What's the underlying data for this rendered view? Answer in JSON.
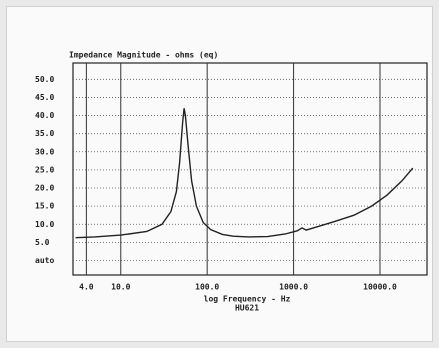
{
  "chart_data": {
    "type": "line",
    "title": "Impedance Magnitude - ohms (eq)",
    "x_label": "log Frequency - Hz",
    "subtitle": "HU621",
    "x_scale": "log",
    "grid": true,
    "xlim": [
      2.8,
      35000
    ],
    "ylim": [
      -4,
      54.5
    ],
    "xticks": [
      {
        "value": 4,
        "label": "4.0"
      },
      {
        "value": 10,
        "label": "10.0"
      },
      {
        "value": 100,
        "label": "100.0"
      },
      {
        "value": 1000,
        "label": "1000.0"
      },
      {
        "value": 10000,
        "label": "10000.0"
      }
    ],
    "yticks": [
      {
        "value": 0,
        "label": "auto"
      },
      {
        "value": 5,
        "label": "5.0"
      },
      {
        "value": 10,
        "label": "10.0"
      },
      {
        "value": 15,
        "label": "15.0"
      },
      {
        "value": 20,
        "label": "20.0"
      },
      {
        "value": 25,
        "label": "25.0"
      },
      {
        "value": 30,
        "label": "30.0"
      },
      {
        "value": 35,
        "label": "35.0"
      },
      {
        "value": 40,
        "label": "40.0"
      },
      {
        "value": 45,
        "label": "45.0"
      },
      {
        "value": 50,
        "label": "50.0"
      }
    ],
    "x": [
      3,
      5,
      10,
      20,
      30,
      38,
      44,
      48,
      52,
      54,
      56,
      60,
      66,
      75,
      90,
      110,
      150,
      200,
      300,
      500,
      800,
      1100,
      1250,
      1400,
      2000,
      3000,
      5000,
      8000,
      12000,
      18000,
      24000
    ],
    "series": [
      {
        "name": "Impedance",
        "color": "#222222",
        "values": [
          6.3,
          6.5,
          7,
          8,
          10,
          13.5,
          19,
          27,
          38,
          42,
          40,
          32,
          22,
          15,
          10.5,
          8.5,
          7.2,
          6.7,
          6.5,
          6.6,
          7.3,
          8.2,
          9,
          8.4,
          9.5,
          10.8,
          12.5,
          15,
          18,
          22,
          25.5
        ]
      }
    ]
  }
}
